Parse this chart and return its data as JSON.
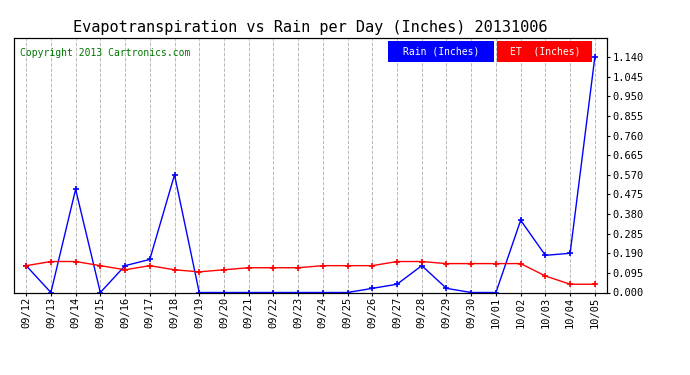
{
  "title": "Evapotranspiration vs Rain per Day (Inches) 20131006",
  "copyright": "Copyright 2013 Cartronics.com",
  "background_color": "#ffffff",
  "plot_bg_color": "#ffffff",
  "grid_color": "#bbbbbb",
  "dates": [
    "09/12",
    "09/13",
    "09/14",
    "09/15",
    "09/16",
    "09/17",
    "09/18",
    "09/19",
    "09/20",
    "09/21",
    "09/22",
    "09/23",
    "09/24",
    "09/25",
    "09/26",
    "09/27",
    "09/28",
    "09/29",
    "09/30",
    "10/01",
    "10/02",
    "10/03",
    "10/04",
    "10/05"
  ],
  "rain": [
    0.13,
    0.0,
    0.5,
    0.0,
    0.13,
    0.16,
    0.57,
    0.0,
    0.0,
    0.0,
    0.0,
    0.0,
    0.0,
    0.0,
    0.02,
    0.04,
    0.13,
    0.02,
    0.0,
    0.0,
    0.35,
    0.18,
    0.19,
    1.14
  ],
  "et": [
    0.13,
    0.15,
    0.15,
    0.13,
    0.11,
    0.13,
    0.11,
    0.1,
    0.11,
    0.12,
    0.12,
    0.12,
    0.13,
    0.13,
    0.13,
    0.15,
    0.15,
    0.14,
    0.14,
    0.14,
    0.14,
    0.08,
    0.04,
    0.04
  ],
  "rain_color": "#0000ff",
  "et_color": "#ff0000",
  "ylim_min": 0.0,
  "ylim_max": 1.235,
  "yticks": [
    0.0,
    0.095,
    0.19,
    0.285,
    0.38,
    0.475,
    0.57,
    0.665,
    0.76,
    0.855,
    0.95,
    1.045,
    1.14
  ],
  "legend_rain_label": "Rain (Inches)",
  "legend_et_label": "ET  (Inches)",
  "title_fontsize": 11,
  "tick_fontsize": 7.5,
  "copyright_fontsize": 7,
  "copyright_color": "#007700"
}
